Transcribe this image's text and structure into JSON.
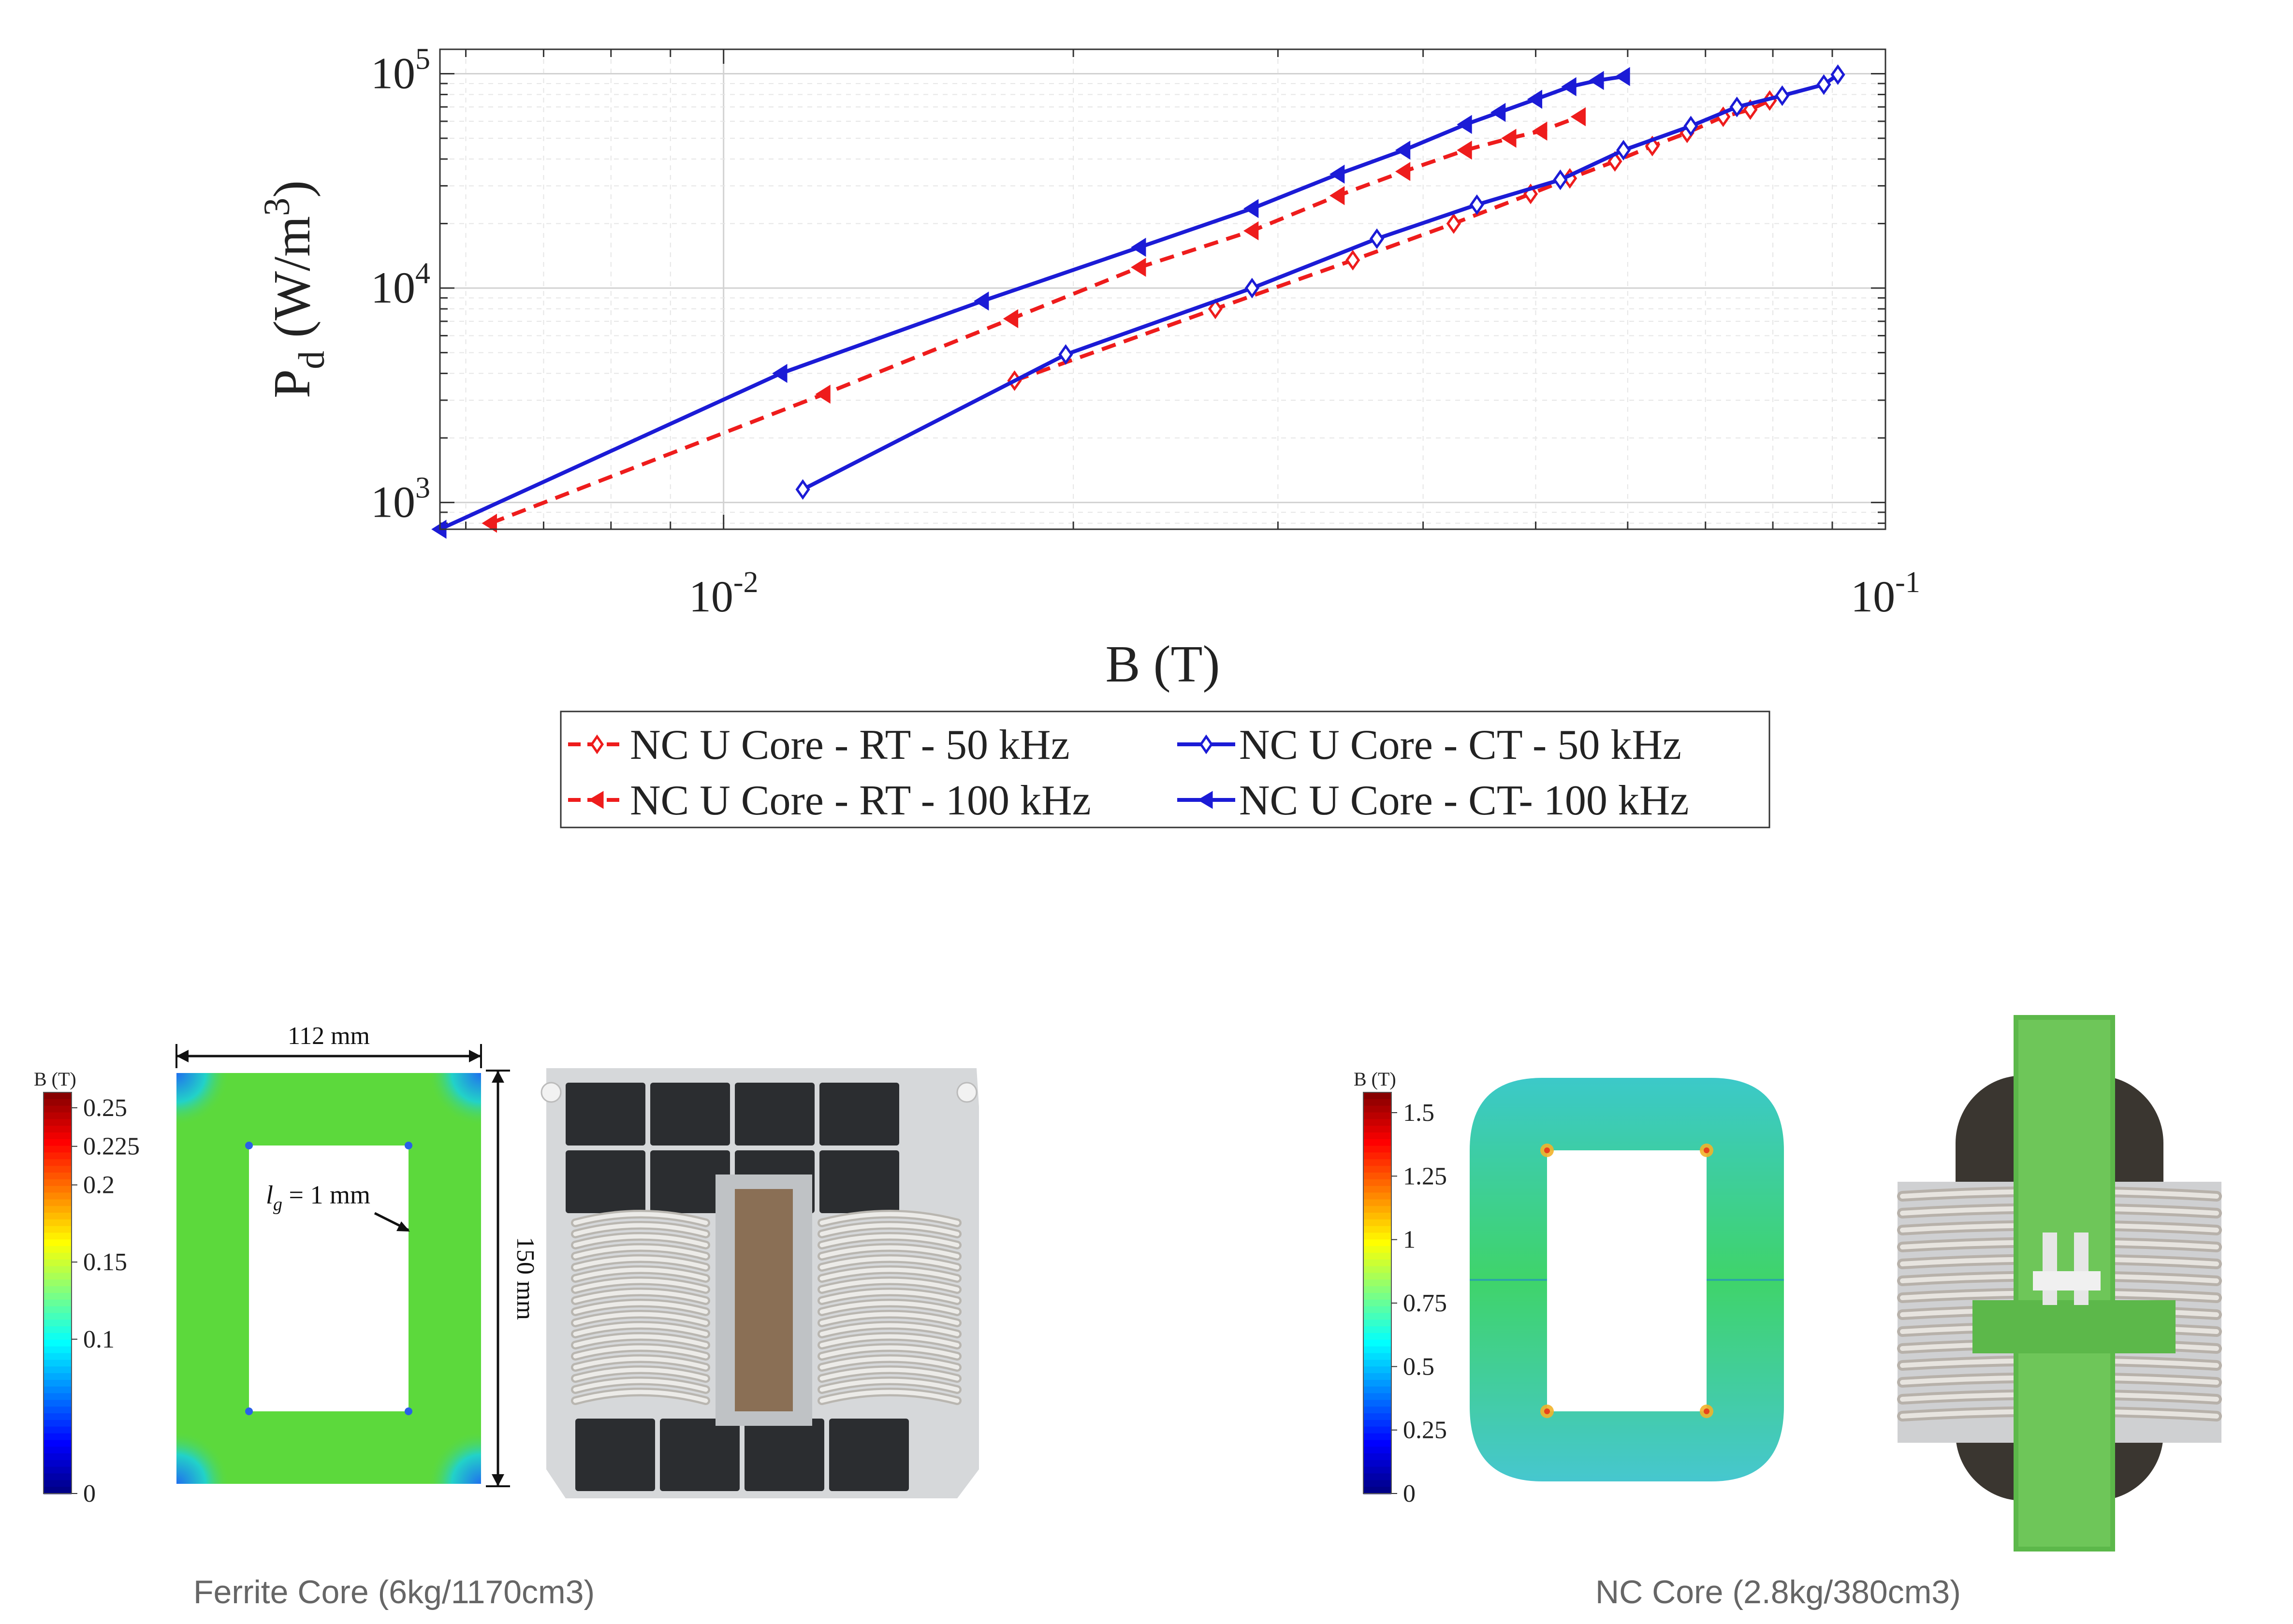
{
  "chart_data": {
    "type": "line",
    "title": "",
    "xlabel": "B (T)",
    "ylabel": "P_d (W/m^3)",
    "ylabel_parts": {
      "base": "P",
      "sub": "d",
      "unit_open": " (W/m",
      "sup": "3",
      "unit_close": ")"
    },
    "xscale": "log",
    "yscale": "log",
    "xlim": [
      0.0057,
      0.1
    ],
    "ylim": [
      750,
      130000
    ],
    "grid": true,
    "legend_position": "bottom",
    "x_ticks": [
      {
        "value": 0.01,
        "base": "10",
        "exp": "-2"
      },
      {
        "value": 0.1,
        "base": "10",
        "exp": "-1"
      }
    ],
    "y_ticks": [
      {
        "value": 1000,
        "base": "10",
        "exp": "3"
      },
      {
        "value": 10000,
        "base": "10",
        "exp": "4"
      },
      {
        "value": 100000,
        "base": "10",
        "exp": "5"
      }
    ],
    "series": [
      {
        "name": "NC U Core - RT - 50 kHz",
        "color": "#ee1c1c",
        "dash": "dashed",
        "marker": "diamond",
        "x": [
          0.0178,
          0.0265,
          0.0348,
          0.0425,
          0.0495,
          0.0535,
          0.0585,
          0.063,
          0.0675,
          0.0725,
          0.0765,
          0.0795
        ],
        "y": [
          3700,
          8000,
          13500,
          20000,
          27500,
          32500,
          39000,
          46000,
          53000,
          63000,
          68000,
          75000
        ]
      },
      {
        "name": "NC U Core - RT - 100 kHz",
        "color": "#ee1c1c",
        "dash": "dashed",
        "marker": "triangle-left",
        "x": [
          0.0063,
          0.0122,
          0.0177,
          0.0228,
          0.0285,
          0.0338,
          0.0385,
          0.0435,
          0.0475,
          0.0505,
          0.0545
        ],
        "y": [
          800,
          3200,
          7200,
          12500,
          18500,
          27000,
          35000,
          44000,
          50000,
          54000,
          63000
        ]
      },
      {
        "name": "NC U Core - CT - 50 kHz",
        "color": "#1b1bd6",
        "dash": "solid",
        "marker": "diamond",
        "x": [
          0.0117,
          0.0197,
          0.0285,
          0.0365,
          0.0445,
          0.0525,
          0.0595,
          0.068,
          0.0745,
          0.0815,
          0.0885,
          0.091
        ],
        "y": [
          1150,
          4900,
          10000,
          17000,
          24500,
          32000,
          44000,
          57000,
          70000,
          79000,
          89000,
          99000
        ]
      },
      {
        "name": "NC U Core - CT- 100 kHz",
        "color": "#1b1bd6",
        "dash": "solid",
        "marker": "triangle-left",
        "x": [
          0.0057,
          0.0112,
          0.0167,
          0.0228,
          0.0285,
          0.0338,
          0.0385,
          0.0435,
          0.0465,
          0.05,
          0.0535,
          0.0565,
          0.0595
        ],
        "y": [
          750,
          4000,
          8700,
          15500,
          23500,
          34000,
          44000,
          58000,
          66000,
          76000,
          87000,
          93000,
          97000
        ]
      }
    ]
  },
  "ferrite_figure": {
    "colorbar_title": "B (T)",
    "colorbar_ticks": [
      {
        "label": "0.25",
        "value": 0.25
      },
      {
        "label": "0.225",
        "value": 0.225
      },
      {
        "label": "0.2",
        "value": 0.2
      },
      {
        "label": "0.15",
        "value": 0.15
      },
      {
        "label": "0.1",
        "value": 0.1
      },
      {
        "label": "0",
        "value": 0
      }
    ],
    "colorbar_max": 0.26,
    "width_label": "112 mm",
    "height_label": "150 mm",
    "gap_label_symbol": "l",
    "gap_label_sub": "g",
    "gap_label_value": " = 1 mm",
    "caption": "Ferrite Core (6kg/1170cm3)"
  },
  "nc_figure": {
    "colorbar_title": "B (T)",
    "colorbar_ticks": [
      {
        "label": "1.5",
        "value": 1.5
      },
      {
        "label": "1.25",
        "value": 1.25
      },
      {
        "label": "1",
        "value": 1.0
      },
      {
        "label": "0.75",
        "value": 0.75
      },
      {
        "label": "0.5",
        "value": 0.5
      },
      {
        "label": "0.25",
        "value": 0.25
      },
      {
        "label": "0",
        "value": 0
      }
    ],
    "colorbar_max": 1.58,
    "caption": "NC Core (2.8kg/380cm3)"
  }
}
